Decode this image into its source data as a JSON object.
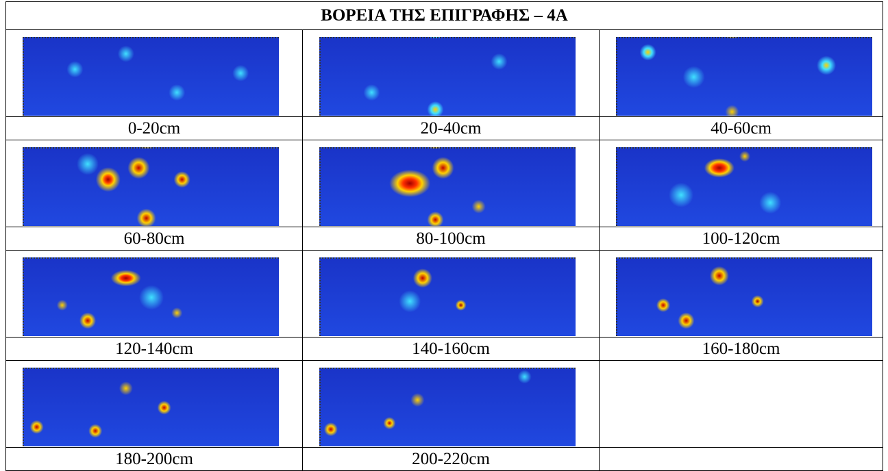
{
  "title": "ΒΟΡΕΙΑ ΤΗΣ ΕΠΙΓΡΑΦΗΣ – 4Α",
  "panels": [
    {
      "label": "0-20cm"
    },
    {
      "label": "20-40cm"
    },
    {
      "label": "40-60cm"
    },
    {
      "label": "60-80cm"
    },
    {
      "label": "80-100cm"
    },
    {
      "label": "100-120cm"
    },
    {
      "label": "120-140cm"
    },
    {
      "label": "140-160cm"
    },
    {
      "label": "160-180cm"
    },
    {
      "label": "180-200cm"
    },
    {
      "label": "200-220cm"
    }
  ]
}
